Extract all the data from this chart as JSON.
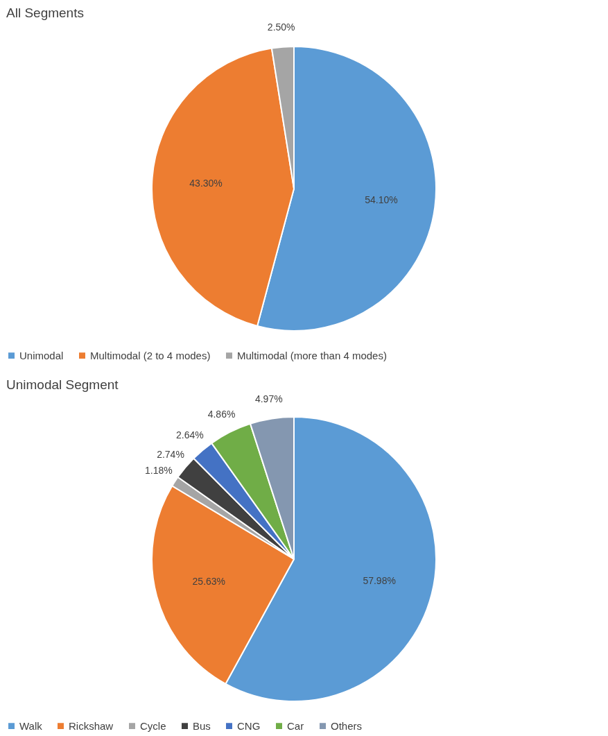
{
  "chart_data": [
    {
      "type": "pie",
      "title": "All Segments",
      "categories": [
        "Unimodal",
        "Multimodal (2 to 4 modes)",
        "Multimodal (more than 4 modes)"
      ],
      "values": [
        54.1,
        43.3,
        2.5
      ],
      "value_labels": [
        "54.10%",
        "43.30%",
        "2.50%"
      ],
      "colors": [
        "#5b9bd5",
        "#ed7d31",
        "#a5a5a5"
      ],
      "legend": "bottom"
    },
    {
      "type": "pie",
      "title": "Unimodal Segment",
      "categories": [
        "Walk",
        "Rickshaw",
        "Cycle",
        "Bus",
        "CNG",
        "Car",
        "Others"
      ],
      "values": [
        57.98,
        25.63,
        1.18,
        2.74,
        2.64,
        4.86,
        4.97
      ],
      "value_labels": [
        "57.98%",
        "25.63%",
        "1.18%",
        "2.74%",
        "2.64%",
        "4.86%",
        "4.97%"
      ],
      "colors": [
        "#5b9bd5",
        "#ed7d31",
        "#a5a5a5",
        "#404040",
        "#4472c4",
        "#70ad47",
        "#8497b0"
      ],
      "legend": "bottom"
    }
  ]
}
